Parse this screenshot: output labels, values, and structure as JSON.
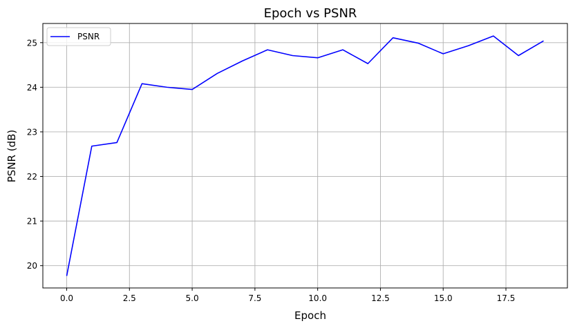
{
  "chart_data": {
    "type": "line",
    "title": "Epoch vs PSNR",
    "xlabel": "Epoch",
    "ylabel": "PSNR (dB)",
    "xlim": [
      -0.95,
      19.95
    ],
    "ylim": [
      19.5,
      25.43
    ],
    "xticks": [
      0.0,
      2.5,
      5.0,
      7.5,
      10.0,
      12.5,
      15.0,
      17.5
    ],
    "xtick_labels": [
      "0.0",
      "2.5",
      "5.0",
      "7.5",
      "10.0",
      "12.5",
      "15.0",
      "17.5"
    ],
    "yticks": [
      20,
      21,
      22,
      23,
      24,
      25
    ],
    "ytick_labels": [
      "20",
      "21",
      "22",
      "23",
      "24",
      "25"
    ],
    "grid": true,
    "legend_position": "top-left",
    "series": [
      {
        "name": "PSNR",
        "color": "#0000ff",
        "x": [
          0,
          1,
          2,
          3,
          4,
          5,
          6,
          7,
          8,
          9,
          10,
          11,
          12,
          13,
          14,
          15,
          16,
          17,
          18,
          19
        ],
        "y": [
          19.77,
          22.68,
          22.76,
          24.08,
          24.0,
          23.95,
          24.31,
          24.59,
          24.84,
          24.71,
          24.66,
          24.84,
          24.53,
          25.11,
          24.99,
          24.75,
          24.93,
          25.15,
          24.71,
          25.04
        ]
      }
    ]
  }
}
